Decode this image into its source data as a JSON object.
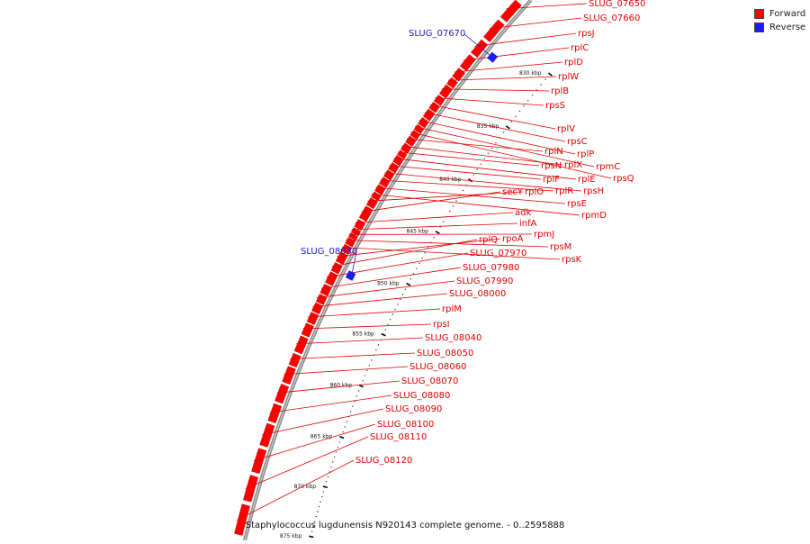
{
  "legend": {
    "items": [
      {
        "label": "Forward",
        "color": "#ff0000"
      },
      {
        "label": "Reverse",
        "color": "#0000ff"
      }
    ]
  },
  "caption": "Staphylococcus lugdunensis N920143 complete genome. - 0..2595888",
  "colors": {
    "forward": "#ff0000",
    "forward_dark": "#b20000",
    "reverse": "#1a1aff",
    "backbone": "#888888",
    "tick": "#000000",
    "forward_label": "#dd0000",
    "reverse_label": "#1a1acc"
  },
  "scale": {
    "ticks": [
      {
        "label": "830 kbp",
        "kbp": 830
      },
      {
        "label": "835 kbp",
        "kbp": 835
      },
      {
        "label": "840 kbp",
        "kbp": 840
      },
      {
        "label": "845 kbp",
        "kbp": 845
      },
      {
        "label": "850 kbp",
        "kbp": 850
      },
      {
        "label": "855 kbp",
        "kbp": 855
      },
      {
        "label": "860 kbp",
        "kbp": 860
      },
      {
        "label": "865 kbp",
        "kbp": 865
      },
      {
        "label": "870 kbp",
        "kbp": 870
      },
      {
        "label": "875 kbp",
        "kbp": 875
      }
    ]
  },
  "genes": {
    "forward": [
      {
        "label": "SLUG_07650"
      },
      {
        "label": "SLUG_07660"
      },
      {
        "label": "rpsJ"
      },
      {
        "label": "rplC"
      },
      {
        "label": "rplD"
      },
      {
        "label": "rplW"
      },
      {
        "label": "rplB"
      },
      {
        "label": "rpsS"
      },
      {
        "label": "rplV"
      },
      {
        "label": "rpsC"
      },
      {
        "label": "rplP"
      },
      {
        "label": "rpmC"
      },
      {
        "label": "rpsQ"
      },
      {
        "label": "rplN"
      },
      {
        "label": "rplX"
      },
      {
        "label": "rpsN"
      },
      {
        "label": "rplE"
      },
      {
        "label": "rplF"
      },
      {
        "label": "rpsH"
      },
      {
        "label": "rplR"
      },
      {
        "label": "rpsE"
      },
      {
        "label": "rpmD"
      },
      {
        "label": "rplO"
      },
      {
        "label": "secY"
      },
      {
        "label": "adk"
      },
      {
        "label": "infA"
      },
      {
        "label": "rpmJ"
      },
      {
        "label": "rpsM"
      },
      {
        "label": "rpsK"
      },
      {
        "label": "rpoA"
      },
      {
        "label": "rplQ"
      },
      {
        "label": "SLUG_07970"
      },
      {
        "label": "SLUG_07980"
      },
      {
        "label": "SLUG_07990"
      },
      {
        "label": "SLUG_08000"
      },
      {
        "label": "rplM"
      },
      {
        "label": "rpsI"
      },
      {
        "label": "SLUG_08040"
      },
      {
        "label": "SLUG_08050"
      },
      {
        "label": "SLUG_08060"
      },
      {
        "label": "SLUG_08070"
      },
      {
        "label": "SLUG_08080"
      },
      {
        "label": "SLUG_08090"
      },
      {
        "label": "SLUG_08100"
      },
      {
        "label": "SLUG_08110"
      },
      {
        "label": "SLUG_08120"
      }
    ],
    "reverse": [
      {
        "label": "SLUG_07670"
      },
      {
        "label": "SLUG_08030"
      }
    ]
  }
}
